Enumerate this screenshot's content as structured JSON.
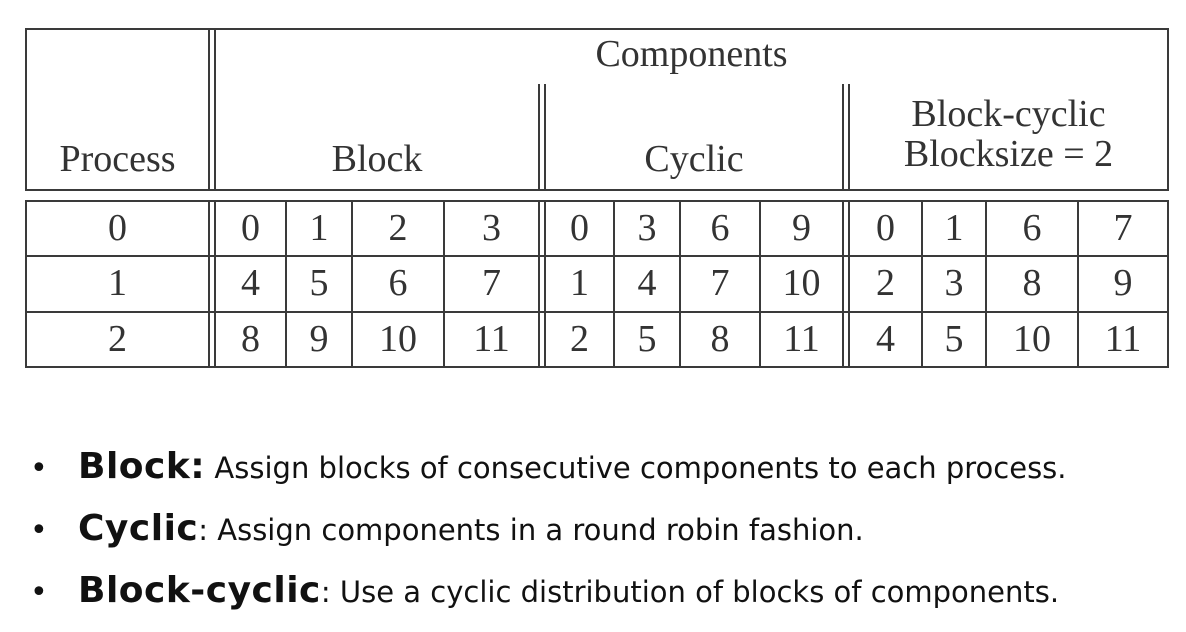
{
  "table": {
    "header": {
      "process": "Process",
      "components": "Components",
      "block": "Block",
      "cyclic": "Cyclic",
      "block_cyclic_line1": "Block-cyclic",
      "block_cyclic_line2": "Blocksize = 2"
    },
    "rows": [
      {
        "process": "0",
        "block": [
          "0",
          "1",
          "2",
          "3"
        ],
        "cyclic": [
          "0",
          "3",
          "6",
          "9"
        ],
        "block_cyclic": [
          "0",
          "1",
          "6",
          "7"
        ]
      },
      {
        "process": "1",
        "block": [
          "4",
          "5",
          "6",
          "7"
        ],
        "cyclic": [
          "1",
          "4",
          "7",
          "10"
        ],
        "block_cyclic": [
          "2",
          "3",
          "8",
          "9"
        ]
      },
      {
        "process": "2",
        "block": [
          "8",
          "9",
          "10",
          "11"
        ],
        "cyclic": [
          "2",
          "5",
          "8",
          "11"
        ],
        "block_cyclic": [
          "4",
          "5",
          "10",
          "11"
        ]
      }
    ]
  },
  "bullets": [
    {
      "term": "Block",
      "sep": ":",
      "desc": " Assign blocks of consecutive components to each process."
    },
    {
      "term": "Cyclic",
      "sep": ":",
      "desc": " Assign components in a round robin fashion."
    },
    {
      "term": "Block-cyclic",
      "sep": ":",
      "desc": " Use a cyclic distribution of blocks of components."
    }
  ]
}
